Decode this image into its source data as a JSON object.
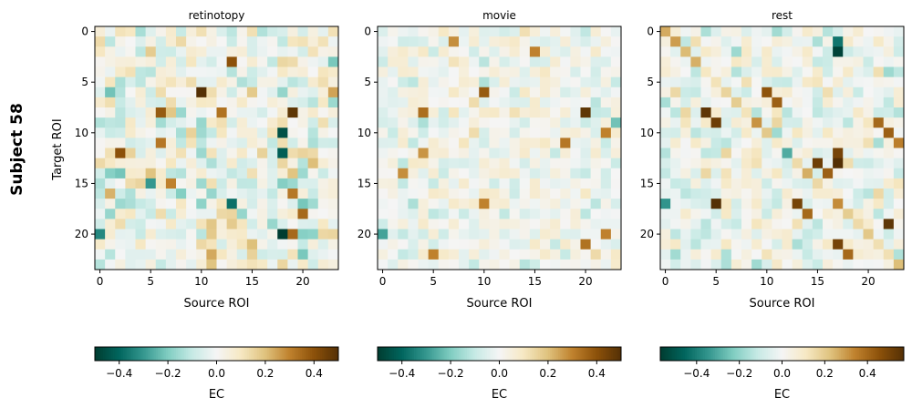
{
  "figure": {
    "subject_label": "Subject 58",
    "ylabel": "Target ROI"
  },
  "chart_data": [
    {
      "type": "heatmap",
      "title": "retinotopy",
      "xlabel": "Source ROI",
      "ylabel": "Target ROI",
      "size": 24,
      "ticks": [
        0,
        5,
        10,
        15,
        20
      ],
      "colormap": "BrBG_r",
      "vlim": [
        -0.5,
        0.5
      ],
      "colorbar": {
        "label": "EC",
        "ticks": [
          -0.4,
          -0.2,
          0.0,
          0.2,
          0.4
        ],
        "tick_labels": [
          "−0.4",
          "−0.2",
          "0.0",
          "0.2",
          "0.4"
        ]
      },
      "seed": 58,
      "noise": 0.16,
      "diagonal": 0.0,
      "matrix": [],
      "strong_entries": [
        {
          "row": 6,
          "col": 10,
          "value": 0.5
        },
        {
          "row": 8,
          "col": 19,
          "value": 0.48
        },
        {
          "row": 3,
          "col": 13,
          "value": 0.4
        },
        {
          "row": 20,
          "col": 18,
          "value": -0.5
        },
        {
          "row": 10,
          "col": 18,
          "value": -0.45
        },
        {
          "row": 12,
          "col": 18,
          "value": -0.42
        },
        {
          "row": 8,
          "col": 6,
          "value": 0.38
        },
        {
          "row": 8,
          "col": 12,
          "value": 0.33
        },
        {
          "row": 11,
          "col": 6,
          "value": 0.32
        },
        {
          "row": 12,
          "col": 2,
          "value": 0.4
        },
        {
          "row": 15,
          "col": 7,
          "value": 0.3
        },
        {
          "row": 18,
          "col": 20,
          "value": 0.35
        },
        {
          "row": 20,
          "col": 19,
          "value": 0.35
        },
        {
          "row": 16,
          "col": 19,
          "value": 0.32
        },
        {
          "row": 17,
          "col": 13,
          "value": -0.38
        },
        {
          "row": 20,
          "col": 0,
          "value": -0.33
        },
        {
          "row": 15,
          "col": 5,
          "value": -0.3
        }
      ]
    },
    {
      "type": "heatmap",
      "title": "movie",
      "xlabel": "Source ROI",
      "ylabel": "",
      "size": 24,
      "ticks": [
        0,
        5,
        10,
        15,
        20
      ],
      "colormap": "BrBG_r",
      "vlim": [
        -0.5,
        0.5
      ],
      "colorbar": {
        "label": "EC",
        "ticks": [
          -0.4,
          -0.2,
          0.0,
          0.2,
          0.4
        ],
        "tick_labels": [
          "−0.4",
          "−0.2",
          "0.0",
          "0.2",
          "0.4"
        ]
      },
      "seed": 158,
      "noise": 0.1,
      "diagonal": 0.0,
      "matrix": [],
      "strong_entries": [
        {
          "row": 6,
          "col": 10,
          "value": 0.38
        },
        {
          "row": 8,
          "col": 4,
          "value": 0.34
        },
        {
          "row": 8,
          "col": 20,
          "value": 0.48
        },
        {
          "row": 2,
          "col": 15,
          "value": 0.3
        },
        {
          "row": 1,
          "col": 7,
          "value": 0.28
        },
        {
          "row": 11,
          "col": 18,
          "value": 0.32
        },
        {
          "row": 10,
          "col": 22,
          "value": 0.3
        },
        {
          "row": 12,
          "col": 4,
          "value": 0.27
        },
        {
          "row": 14,
          "col": 2,
          "value": 0.28
        },
        {
          "row": 17,
          "col": 10,
          "value": 0.3
        },
        {
          "row": 20,
          "col": 22,
          "value": 0.3
        },
        {
          "row": 21,
          "col": 20,
          "value": 0.33
        },
        {
          "row": 22,
          "col": 5,
          "value": 0.3
        },
        {
          "row": 20,
          "col": 0,
          "value": -0.28
        },
        {
          "row": 9,
          "col": 23,
          "value": -0.22
        }
      ]
    },
    {
      "type": "heatmap",
      "title": "rest",
      "xlabel": "Source ROI",
      "ylabel": "",
      "size": 24,
      "ticks": [
        0,
        5,
        10,
        15,
        20
      ],
      "colormap": "BrBG_r",
      "vlim": [
        -0.57,
        0.57
      ],
      "colorbar": {
        "label": "EC",
        "ticks": [
          -0.4,
          -0.2,
          0.0,
          0.2,
          0.4
        ],
        "tick_labels": [
          "−0.4",
          "−0.2",
          "0.0",
          "0.2",
          "0.4"
        ]
      },
      "seed": 258,
      "noise": 0.14,
      "diagonal": 0.2,
      "matrix": [],
      "strong_entries": [
        {
          "row": 8,
          "col": 4,
          "value": 0.55
        },
        {
          "row": 9,
          "col": 5,
          "value": 0.52
        },
        {
          "row": 6,
          "col": 10,
          "value": 0.45
        },
        {
          "row": 7,
          "col": 11,
          "value": 0.42
        },
        {
          "row": 12,
          "col": 17,
          "value": 0.5
        },
        {
          "row": 13,
          "col": 17,
          "value": 0.57
        },
        {
          "row": 13,
          "col": 15,
          "value": 0.52
        },
        {
          "row": 14,
          "col": 16,
          "value": 0.42
        },
        {
          "row": 17,
          "col": 5,
          "value": 0.57
        },
        {
          "row": 17,
          "col": 13,
          "value": 0.5
        },
        {
          "row": 18,
          "col": 14,
          "value": 0.4
        },
        {
          "row": 19,
          "col": 22,
          "value": 0.55
        },
        {
          "row": 21,
          "col": 17,
          "value": 0.5
        },
        {
          "row": 22,
          "col": 18,
          "value": 0.4
        },
        {
          "row": 9,
          "col": 21,
          "value": 0.4
        },
        {
          "row": 10,
          "col": 22,
          "value": 0.42
        },
        {
          "row": 11,
          "col": 23,
          "value": 0.35
        },
        {
          "row": 1,
          "col": 17,
          "value": -0.42
        },
        {
          "row": 2,
          "col": 17,
          "value": -0.55
        },
        {
          "row": 17,
          "col": 0,
          "value": -0.35
        },
        {
          "row": 12,
          "col": 12,
          "value": -0.3
        }
      ]
    }
  ]
}
